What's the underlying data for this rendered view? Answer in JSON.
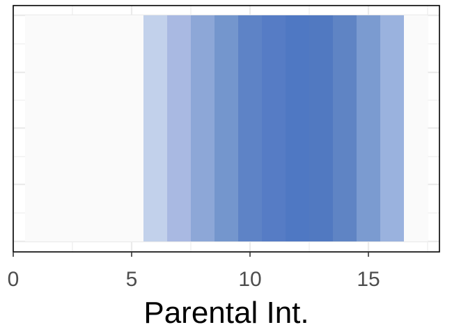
{
  "chart_data": {
    "type": "heatmap",
    "title": "",
    "xlabel": "Parental Int.",
    "ylabel": "",
    "xlim": [
      0,
      18
    ],
    "x_ticks": [
      0,
      5,
      10,
      15
    ],
    "x_tick_labels": [
      "0",
      "5",
      "10",
      "15"
    ],
    "grid": true,
    "background_color": "#fafafa",
    "cells": [
      {
        "x": 1,
        "color": "#fafafa"
      },
      {
        "x": 2,
        "color": "#fafafa"
      },
      {
        "x": 3,
        "color": "#fafafa"
      },
      {
        "x": 4,
        "color": "#fafafa"
      },
      {
        "x": 5,
        "color": "#fafafa"
      },
      {
        "x": 6,
        "color": "#c2d1eb"
      },
      {
        "x": 7,
        "color": "#a9b9e2"
      },
      {
        "x": 8,
        "color": "#8da7d7"
      },
      {
        "x": 9,
        "color": "#7496cd"
      },
      {
        "x": 10,
        "color": "#5e83c6"
      },
      {
        "x": 11,
        "color": "#567cc5"
      },
      {
        "x": 12,
        "color": "#4f78c3"
      },
      {
        "x": 13,
        "color": "#5179c1"
      },
      {
        "x": 14,
        "color": "#5f84c4"
      },
      {
        "x": 15,
        "color": "#7b9bd0"
      },
      {
        "x": 16,
        "color": "#9ab2de"
      },
      {
        "x": 17,
        "color": "#fafafa"
      }
    ]
  }
}
